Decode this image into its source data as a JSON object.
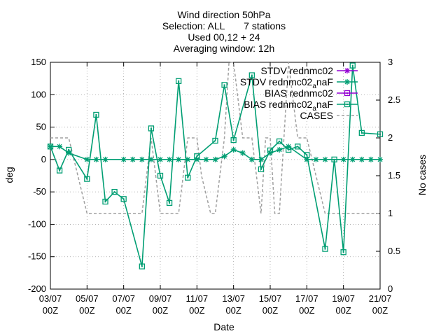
{
  "chart_data": {
    "type": "line",
    "title_lines": [
      "Wind direction 50hPa",
      "Selection: ALL       7 stations",
      "Used 00,12 + 24",
      "Averaging window: 12h"
    ],
    "xlabel": "Date",
    "ylabel": "deg",
    "y2label": "No cases",
    "x_range": [
      "03/07 00Z",
      "21/07 00Z"
    ],
    "ylim": [
      -200,
      150
    ],
    "y2lim": [
      0,
      3
    ],
    "y_ticks": [
      -200,
      -150,
      -100,
      -50,
      0,
      50,
      100,
      150
    ],
    "y2_ticks": [
      0,
      0.5,
      1,
      1.5,
      2,
      2.5,
      3
    ],
    "x_ticks": [
      {
        "line1": "03/07",
        "line2": "00Z",
        "day": 0
      },
      {
        "line1": "05/07",
        "line2": "00Z",
        "day": 2
      },
      {
        "line1": "07/07",
        "line2": "00Z",
        "day": 4
      },
      {
        "line1": "09/07",
        "line2": "00Z",
        "day": 6
      },
      {
        "line1": "11/07",
        "line2": "00Z",
        "day": 8
      },
      {
        "line1": "13/07",
        "line2": "00Z",
        "day": 10
      },
      {
        "line1": "15/07",
        "line2": "00Z",
        "day": 12
      },
      {
        "line1": "17/07",
        "line2": "00Z",
        "day": 14
      },
      {
        "line1": "19/07",
        "line2": "00Z",
        "day": 16
      },
      {
        "line1": "21/07",
        "line2": "00Z",
        "day": 18
      }
    ],
    "grid": true,
    "legend_position": "top-right",
    "series": [
      {
        "name": "STDV rednmc02",
        "label_main": "STDV rednmc02",
        "label_sub": "",
        "label_tail": "",
        "color": "#9400d3",
        "marker": "star",
        "axis": "y",
        "x": [],
        "y": []
      },
      {
        "name": "STDV rednmc02_anaF",
        "label_main": "STDV rednmc02",
        "label_sub": "a",
        "label_tail": "naF",
        "color": "#009e73",
        "marker": "star",
        "axis": "y",
        "x": [
          0,
          0.5,
          1,
          2,
          2.5,
          3,
          4,
          4.5,
          5,
          5.5,
          6,
          6.5,
          7,
          7.5,
          8,
          8.5,
          9,
          9.5,
          10,
          10.5,
          11,
          11.5,
          12,
          12.5,
          13,
          14,
          14.5,
          15,
          16,
          16.5,
          17,
          17.5,
          18
        ],
        "y": [
          20,
          20,
          10,
          0,
          0,
          0,
          0,
          0,
          0,
          0,
          0,
          0,
          0,
          0,
          0,
          0,
          0,
          5,
          15,
          10,
          0,
          0,
          10,
          15,
          20,
          0,
          0,
          0,
          0,
          0,
          0,
          0,
          0
        ]
      },
      {
        "name": "BIAS rednmc02",
        "label_main": "BIAS rednmc02",
        "label_sub": "",
        "label_tail": "",
        "color": "#9400d3",
        "marker": "square",
        "axis": "y",
        "x": [],
        "y": []
      },
      {
        "name": "BIAS rednmc02_anaF",
        "label_main": "BIAS rednmc02",
        "label_sub": "a",
        "label_tail": "naF",
        "color": "#009e73",
        "marker": "square",
        "axis": "y",
        "x": [
          0,
          0.5,
          1,
          2,
          2.5,
          3,
          3.5,
          4,
          5,
          5.5,
          6,
          6.5,
          7,
          7.5,
          8,
          9,
          9.5,
          10,
          11,
          11.5,
          12,
          12.5,
          13,
          13.5,
          14,
          15,
          15.5,
          16,
          16.5,
          17,
          18
        ],
        "y": [
          20,
          -17,
          15,
          -30,
          69,
          -65,
          -50,
          -61,
          -165,
          48,
          -25,
          -67,
          121,
          -28,
          5,
          29,
          115,
          30,
          130,
          -15,
          14,
          28,
          15,
          20,
          7,
          -138,
          0,
          -143,
          145,
          41,
          39
        ]
      },
      {
        "name": "CASES",
        "label_main": "CASES",
        "label_sub": "",
        "label_tail": "",
        "color": "#a0a0a0",
        "marker": "none",
        "dash": true,
        "axis": "y2",
        "x": [
          0,
          0.25,
          0.5,
          1,
          1.5,
          2,
          4,
          4.5,
          5,
          5.5,
          6,
          6.5,
          7,
          7.5,
          8,
          8.25,
          8.75,
          9,
          9.5,
          9.75,
          10,
          10.5,
          11,
          11.5,
          11.75,
          12,
          12.25,
          12.5,
          12.75,
          13,
          13.5,
          14,
          15,
          15.5,
          16,
          16.5,
          17,
          18
        ],
        "y": [
          2,
          2,
          2,
          2,
          1.5,
          1,
          1,
          1,
          1,
          2,
          1,
          1,
          1,
          2,
          2,
          1.5,
          1,
          1,
          2,
          3,
          3,
          2,
          2,
          1,
          2,
          2,
          1,
          1,
          2,
          3,
          2,
          2,
          1,
          1,
          1,
          1,
          1,
          1
        ]
      }
    ]
  }
}
